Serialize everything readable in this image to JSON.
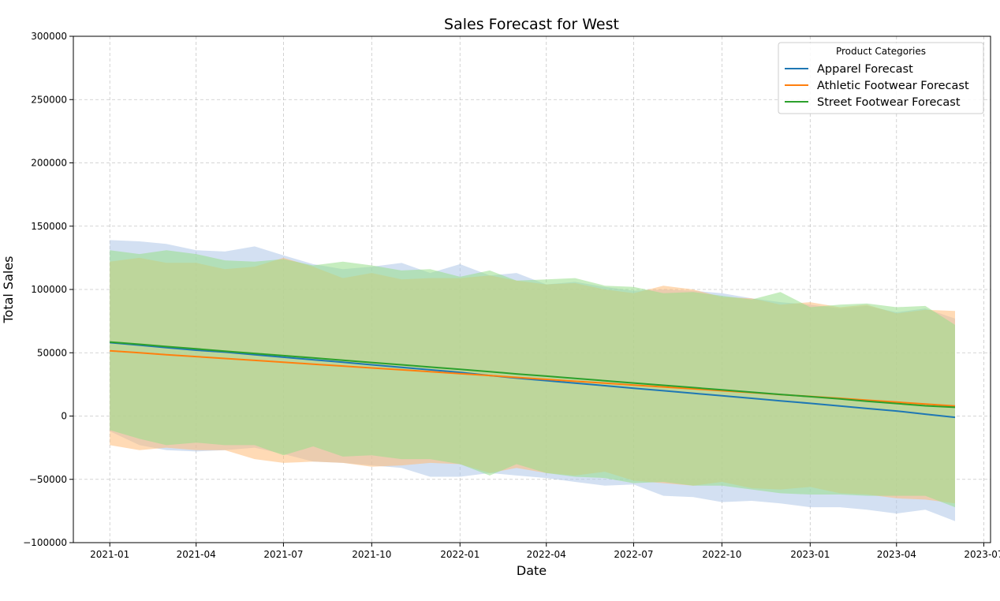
{
  "chart_data": {
    "type": "line",
    "title": "Sales Forecast for West",
    "xlabel": "Date",
    "ylabel": "Total Sales",
    "ylim": [
      -100000,
      300000
    ],
    "xlim": [
      "2020-11-24",
      "2023-07-08"
    ],
    "grid": true,
    "legend_placement": "top-right",
    "legend_title": "Product Categories",
    "x_ticks": [
      "2021-01",
      "2021-04",
      "2021-07",
      "2021-10",
      "2022-01",
      "2022-04",
      "2022-07",
      "2022-10",
      "2023-01",
      "2023-04",
      "2023-07"
    ],
    "y_ticks": [
      300000,
      250000,
      200000,
      150000,
      100000,
      50000,
      0,
      -50000,
      -100000
    ],
    "y_tick_labels": [
      "300000",
      "250000",
      "200000",
      "150000",
      "100000",
      "50000",
      "0",
      "−50000",
      "−100000"
    ],
    "x": [
      "2021-01",
      "2021-02",
      "2021-03",
      "2021-04",
      "2021-05",
      "2021-06",
      "2021-07",
      "2021-08",
      "2021-09",
      "2021-10",
      "2021-11",
      "2021-12",
      "2022-01",
      "2022-02",
      "2022-03",
      "2022-04",
      "2022-05",
      "2022-06",
      "2022-07",
      "2022-08",
      "2022-09",
      "2022-10",
      "2022-11",
      "2022-12",
      "2023-01",
      "2023-02",
      "2023-03",
      "2023-04",
      "2023-05",
      "2023-06"
    ],
    "series": [
      {
        "name": "Apparel Forecast",
        "color": "#1f77b4",
        "band_color": "#aec7e8",
        "values": [
          58000,
          56000,
          54000,
          52000,
          50500,
          48500,
          46500,
          44500,
          42500,
          40500,
          38500,
          36500,
          34500,
          32000,
          30000,
          28000,
          26000,
          24000,
          22000,
          20000,
          18000,
          16000,
          14000,
          12000,
          10000,
          8000,
          6000,
          4000,
          1500,
          -1000
        ],
        "upper": [
          139000,
          138000,
          136000,
          131000,
          130000,
          134000,
          127000,
          120000,
          116000,
          118000,
          121000,
          113000,
          120000,
          111000,
          113000,
          104000,
          106000,
          102000,
          99000,
          100000,
          99000,
          97000,
          93000,
          90000,
          88000,
          85000,
          87000,
          82000,
          85000,
          77000
        ],
        "lower": [
          -12000,
          -23000,
          -27000,
          -28000,
          -27000,
          -25000,
          -30000,
          -36000,
          -37000,
          -39000,
          -41000,
          -48000,
          -48000,
          -45000,
          -47000,
          -49000,
          -52000,
          -55000,
          -54000,
          -63000,
          -64000,
          -68000,
          -67000,
          -69000,
          -72000,
          -72000,
          -74000,
          -77000,
          -74000,
          -83000
        ]
      },
      {
        "name": "Athletic Footwear Forecast",
        "color": "#ff7f0e",
        "band_color": "#ffbb78",
        "values": [
          51500,
          50000,
          48500,
          47000,
          45500,
          44000,
          42500,
          41000,
          39500,
          38000,
          36500,
          35000,
          33500,
          32000,
          30500,
          29000,
          27500,
          26000,
          24500,
          23000,
          21500,
          20000,
          18500,
          17000,
          15500,
          14000,
          12500,
          11000,
          9500,
          8000
        ],
        "upper": [
          122000,
          125000,
          121000,
          121000,
          116000,
          118000,
          125000,
          118000,
          109000,
          113000,
          108000,
          109000,
          109000,
          111000,
          107000,
          104000,
          105000,
          100000,
          97000,
          103000,
          100000,
          94000,
          93000,
          88000,
          90000,
          86000,
          88000,
          81000,
          84000,
          83000
        ],
        "lower": [
          -23000,
          -27000,
          -25000,
          -27000,
          -27000,
          -34000,
          -37000,
          -36000,
          -37000,
          -40000,
          -39000,
          -37000,
          -38000,
          -45000,
          -41000,
          -45000,
          -47000,
          -44000,
          -51000,
          -53000,
          -55000,
          -52000,
          -57000,
          -58000,
          -56000,
          -61000,
          -62000,
          -65000,
          -66000,
          -69000
        ]
      },
      {
        "name": "Street Footwear Forecast",
        "color": "#2ca02c",
        "band_color": "#98df8a",
        "values": [
          58500,
          56700,
          54900,
          53100,
          51300,
          49500,
          47700,
          45900,
          44100,
          42300,
          40500,
          38700,
          36900,
          35100,
          33300,
          31500,
          29700,
          27900,
          26100,
          24300,
          22500,
          20700,
          18900,
          17100,
          15300,
          13500,
          11700,
          9900,
          8100,
          6900
        ],
        "upper": [
          131000,
          128000,
          131000,
          128000,
          123000,
          122000,
          124000,
          119000,
          122000,
          119000,
          115000,
          116000,
          110000,
          115000,
          107000,
          108000,
          109000,
          103000,
          102000,
          97000,
          98000,
          95000,
          92000,
          98000,
          86000,
          88000,
          89000,
          86000,
          87000,
          72000
        ],
        "lower": [
          -11000,
          -18000,
          -23000,
          -21000,
          -23000,
          -23000,
          -31000,
          -24000,
          -32000,
          -31000,
          -34000,
          -34000,
          -38000,
          -47000,
          -38000,
          -45000,
          -48000,
          -49000,
          -53000,
          -52000,
          -55000,
          -55000,
          -58000,
          -61000,
          -62000,
          -62000,
          -63000,
          -63000,
          -63000,
          -72000
        ]
      }
    ]
  }
}
